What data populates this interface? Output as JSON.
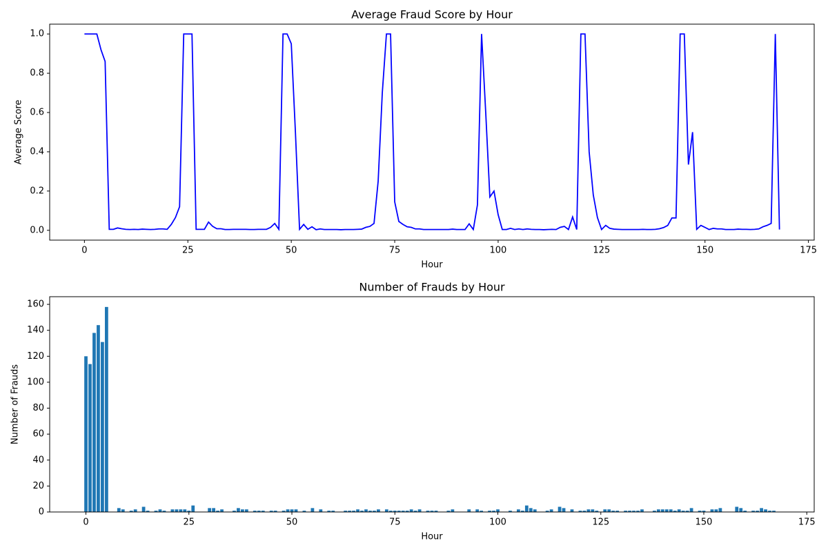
{
  "chart_data": [
    {
      "type": "line",
      "title": "Average Fraud Score by Hour",
      "x_label": "Hour",
      "y_label": "Average Score",
      "color": "blue",
      "x": [
        0,
        1,
        2,
        3,
        4,
        5,
        6,
        7,
        8,
        9,
        10,
        11,
        12,
        13,
        14,
        15,
        16,
        17,
        18,
        19,
        20,
        21,
        22,
        23,
        24,
        25,
        26,
        27,
        28,
        29,
        30,
        31,
        32,
        33,
        34,
        35,
        36,
        37,
        38,
        39,
        40,
        41,
        42,
        43,
        44,
        45,
        46,
        47,
        48,
        49,
        50,
        51,
        52,
        53,
        54,
        55,
        56,
        57,
        58,
        59,
        60,
        61,
        62,
        63,
        64,
        65,
        66,
        67,
        68,
        69,
        70,
        71,
        72,
        73,
        74,
        75,
        76,
        77,
        78,
        79,
        80,
        81,
        82,
        83,
        84,
        85,
        86,
        87,
        88,
        89,
        90,
        91,
        92,
        93,
        94,
        95,
        96,
        97,
        98,
        99,
        100,
        101,
        102,
        103,
        104,
        105,
        106,
        107,
        108,
        109,
        110,
        111,
        112,
        113,
        114,
        115,
        116,
        117,
        118,
        119,
        120,
        121,
        122,
        123,
        124,
        125,
        126,
        127,
        128,
        129,
        130,
        131,
        132,
        133,
        134,
        135,
        136,
        137,
        138,
        139,
        140,
        141,
        142,
        143,
        144,
        145,
        146,
        147,
        148,
        149,
        150,
        151,
        152,
        153,
        154,
        155,
        156,
        157,
        158,
        159,
        160,
        161,
        162,
        163,
        164,
        165,
        166,
        167,
        168
      ],
      "values": [
        1,
        1,
        1,
        1,
        0.92,
        0.86,
        0.005,
        0.005,
        0.012,
        0.008,
        0.005,
        0.004,
        0.005,
        0.004,
        0.006,
        0.005,
        0.004,
        0.005,
        0.007,
        0.007,
        0.005,
        0.03,
        0.065,
        0.12,
        1,
        1,
        1,
        0.005,
        0.005,
        0.005,
        0.042,
        0.02,
        0.008,
        0.008,
        0.004,
        0.004,
        0.005,
        0.005,
        0.005,
        0.005,
        0.004,
        0.004,
        0.005,
        0.005,
        0.005,
        0.015,
        0.035,
        0.005,
        1,
        1,
        0.95,
        0.5,
        0.005,
        0.03,
        0.005,
        0.018,
        0.003,
        0.007,
        0.004,
        0.004,
        0.004,
        0.004,
        0.003,
        0.004,
        0.004,
        0.004,
        0.005,
        0.006,
        0.015,
        0.02,
        0.035,
        0.25,
        0.7,
        1,
        1,
        0.145,
        0.045,
        0.03,
        0.018,
        0.015,
        0.007,
        0.007,
        0.004,
        0.004,
        0.004,
        0.004,
        0.004,
        0.004,
        0.004,
        0.006,
        0.004,
        0.004,
        0.004,
        0.033,
        0.004,
        0.13,
        1,
        0.6,
        0.17,
        0.2,
        0.08,
        0.004,
        0.004,
        0.01,
        0.004,
        0.007,
        0.004,
        0.007,
        0.005,
        0.004,
        0.004,
        0.003,
        0.004,
        0.005,
        0.004,
        0.015,
        0.02,
        0.004,
        0.068,
        0.004,
        1,
        1,
        0.4,
        0.18,
        0.065,
        0.004,
        0.025,
        0.01,
        0.006,
        0.005,
        0.004,
        0.004,
        0.004,
        0.004,
        0.004,
        0.005,
        0.004,
        0.004,
        0.005,
        0.008,
        0.014,
        0.025,
        0.063,
        0.063,
        1,
        1,
        0.335,
        0.5,
        0.005,
        0.025,
        0.015,
        0.004,
        0.01,
        0.007,
        0.007,
        0.004,
        0.004,
        0.004,
        0.006,
        0.005,
        0.005,
        0.004,
        0.005,
        0.007,
        0.018,
        0.025,
        0.035,
        1,
        0.004
      ],
      "xlim": [
        -8.4,
        176.4
      ],
      "xticks": [
        0,
        25,
        50,
        75,
        100,
        125,
        150,
        175
      ],
      "ylim": [
        -0.05,
        1.05
      ],
      "yticks": [
        {
          "value": 0,
          "label": "0.0"
        },
        {
          "value": 0.2,
          "label": "0.2"
        },
        {
          "value": 0.4,
          "label": "0.4"
        },
        {
          "value": 0.6,
          "label": "0.6"
        },
        {
          "value": 0.8,
          "label": "0.8"
        },
        {
          "value": 1,
          "label": "1.0"
        }
      ]
    },
    {
      "type": "bar",
      "title": "Number of Frauds by Hour",
      "x_label": "Hour",
      "y_label": "Number of Frauds",
      "color": "#1f77b4",
      "x": [
        0,
        1,
        2,
        3,
        4,
        5,
        6,
        7,
        8,
        9,
        10,
        11,
        12,
        13,
        14,
        15,
        16,
        17,
        18,
        19,
        20,
        21,
        22,
        23,
        24,
        25,
        26,
        27,
        28,
        29,
        30,
        31,
        32,
        33,
        34,
        35,
        36,
        37,
        38,
        39,
        40,
        41,
        42,
        43,
        44,
        45,
        46,
        47,
        48,
        49,
        50,
        51,
        52,
        53,
        54,
        55,
        56,
        57,
        58,
        59,
        60,
        61,
        62,
        63,
        64,
        65,
        66,
        67,
        68,
        69,
        70,
        71,
        72,
        73,
        74,
        75,
        76,
        77,
        78,
        79,
        80,
        81,
        82,
        83,
        84,
        85,
        86,
        87,
        88,
        89,
        90,
        91,
        92,
        93,
        94,
        95,
        96,
        97,
        98,
        99,
        100,
        101,
        102,
        103,
        104,
        105,
        106,
        107,
        108,
        109,
        110,
        111,
        112,
        113,
        114,
        115,
        116,
        117,
        118,
        119,
        120,
        121,
        122,
        123,
        124,
        125,
        126,
        127,
        128,
        129,
        130,
        131,
        132,
        133,
        134,
        135,
        136,
        137,
        138,
        139,
        140,
        141,
        142,
        143,
        144,
        145,
        146,
        147,
        148,
        149,
        150,
        151,
        152,
        153,
        154,
        155,
        156,
        157,
        158,
        159,
        160,
        161,
        162,
        163,
        164,
        165,
        166,
        167,
        168
      ],
      "values": [
        120,
        114,
        138,
        144,
        131,
        158,
        0,
        0,
        3,
        2,
        0,
        1,
        2,
        0,
        4,
        1,
        0,
        1,
        2,
        1,
        0,
        2,
        2,
        2,
        2,
        1,
        5,
        0,
        0,
        0,
        3,
        3,
        1,
        2,
        0,
        0,
        1,
        3,
        2,
        2,
        0,
        1,
        1,
        1,
        0,
        1,
        1,
        0,
        1,
        2,
        2,
        2,
        0,
        1,
        0,
        3,
        0,
        2,
        0,
        1,
        1,
        0,
        0,
        1,
        1,
        1,
        2,
        1,
        2,
        1,
        1,
        2,
        0,
        2,
        1,
        1,
        1,
        1,
        1,
        2,
        1,
        2,
        0,
        1,
        1,
        1,
        0,
        0,
        1,
        2,
        0,
        0,
        0,
        2,
        0,
        2,
        1,
        0,
        1,
        1,
        2,
        0,
        0,
        1,
        0,
        2,
        1,
        5,
        3,
        2,
        0,
        0,
        1,
        2,
        0,
        4,
        3,
        0,
        2,
        0,
        1,
        1,
        2,
        2,
        1,
        0,
        2,
        2,
        1,
        1,
        0,
        1,
        1,
        1,
        1,
        2,
        0,
        0,
        1,
        2,
        2,
        2,
        2,
        1,
        2,
        1,
        1,
        3,
        0,
        1,
        1,
        0,
        2,
        2,
        3,
        0,
        0,
        0,
        4,
        3,
        1,
        0,
        1,
        1,
        3,
        2,
        1,
        1,
        0
      ],
      "xlim": [
        -8.8,
        176.8
      ],
      "xticks": [
        0,
        25,
        50,
        75,
        100,
        125,
        150,
        175
      ],
      "ylim": [
        0,
        165.9
      ],
      "yticks": [
        0,
        20,
        40,
        60,
        80,
        100,
        120,
        140,
        160
      ]
    }
  ]
}
